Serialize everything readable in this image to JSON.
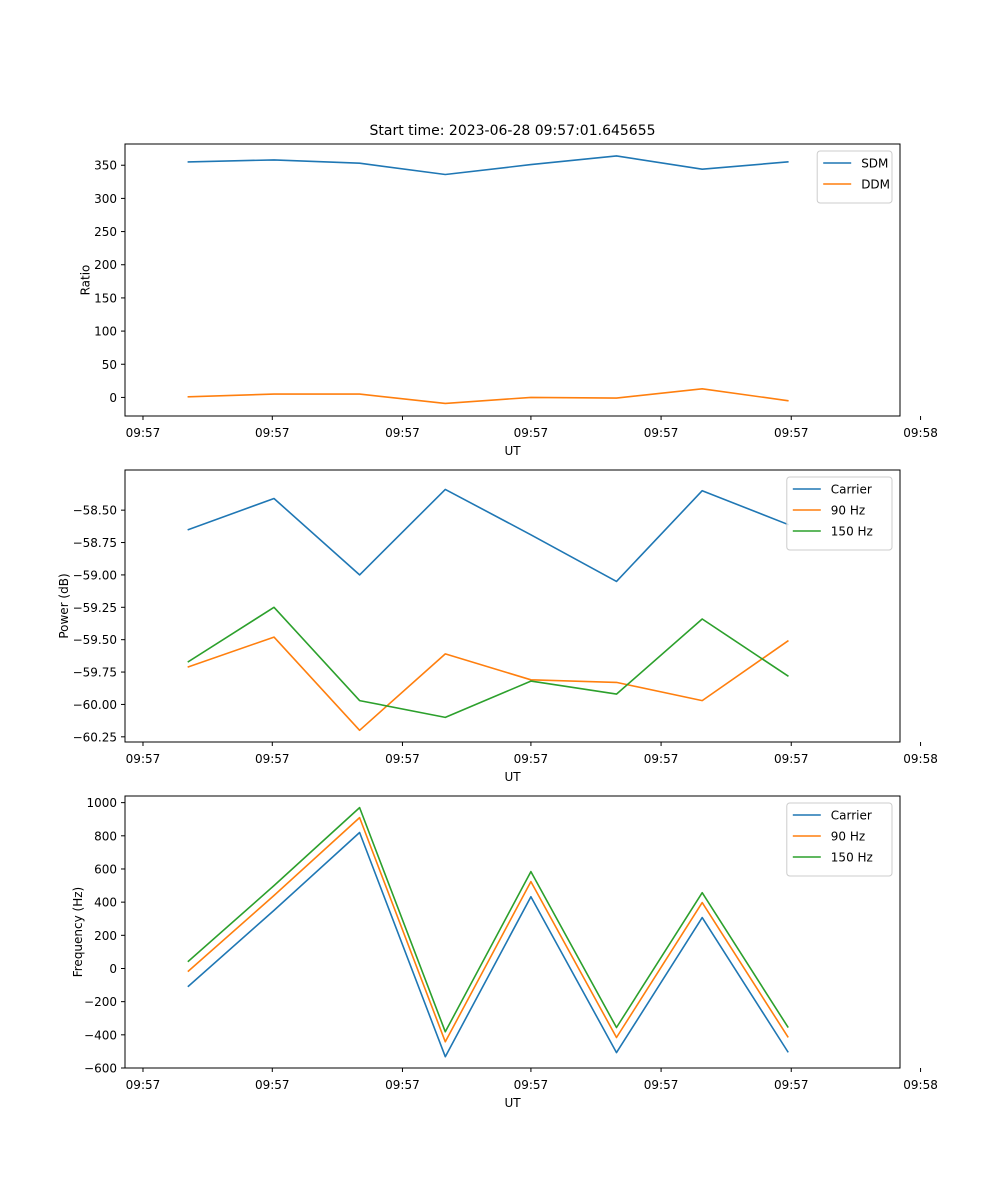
{
  "figure_title": "Start time: 2023-06-28 09:57:01.645655",
  "colors": {
    "blue": "#1f77b4",
    "orange": "#ff7f0e",
    "green": "#2ca02c"
  },
  "chart_data": [
    {
      "type": "line",
      "title": "Start time: 2023-06-28 09:57:01.645655",
      "xlabel": "UT",
      "ylabel": "Ratio",
      "x_index": [
        1,
        2,
        3,
        4,
        5,
        6,
        7,
        8
      ],
      "xlim": [
        0.26,
        9.31
      ],
      "ylim": [
        -28,
        382
      ],
      "x_ticks": [
        {
          "at": 0.47,
          "label": "09:57"
        },
        {
          "at": 1.98,
          "label": "09:57"
        },
        {
          "at": 3.5,
          "label": "09:57"
        },
        {
          "at": 5.0,
          "label": "09:57"
        },
        {
          "at": 6.52,
          "label": "09:57"
        },
        {
          "at": 8.04,
          "label": "09:57"
        },
        {
          "at": 9.55,
          "label": "09:58"
        }
      ],
      "y_ticks": [
        0,
        50,
        100,
        150,
        200,
        250,
        300,
        350
      ],
      "legend_position": "top-right",
      "series": [
        {
          "name": "SDM",
          "color": "#1f77b4",
          "values": [
            355,
            358,
            353,
            336,
            351,
            364,
            344,
            355
          ]
        },
        {
          "name": "DDM",
          "color": "#ff7f0e",
          "values": [
            1,
            5,
            5,
            -9,
            0,
            -1,
            13,
            -5
          ]
        }
      ]
    },
    {
      "type": "line",
      "title": "",
      "xlabel": "UT",
      "ylabel": "Power (dB)",
      "x_index": [
        1,
        2,
        3,
        4,
        5,
        6,
        7,
        8
      ],
      "xlim": [
        0.26,
        9.31
      ],
      "ylim": [
        -60.29,
        -58.19
      ],
      "x_ticks": [
        {
          "at": 0.47,
          "label": "09:57"
        },
        {
          "at": 1.98,
          "label": "09:57"
        },
        {
          "at": 3.5,
          "label": "09:57"
        },
        {
          "at": 5.0,
          "label": "09:57"
        },
        {
          "at": 6.52,
          "label": "09:57"
        },
        {
          "at": 8.04,
          "label": "09:57"
        },
        {
          "at": 9.55,
          "label": "09:58"
        }
      ],
      "y_ticks": [
        -60.25,
        -60.0,
        -59.75,
        -59.5,
        -59.25,
        -59.0,
        -58.75,
        -58.5
      ],
      "y_tick_labels": [
        "−60.25",
        "−60.00",
        "−59.75",
        "−59.50",
        "−59.25",
        "−59.00",
        "−58.75",
        "−58.50"
      ],
      "legend_position": "top-right",
      "series": [
        {
          "name": "Carrier",
          "color": "#1f77b4",
          "values": [
            -58.65,
            -58.41,
            -59.0,
            -58.34,
            -58.69,
            -59.05,
            -58.35,
            -58.61
          ]
        },
        {
          "name": "90 Hz",
          "color": "#ff7f0e",
          "values": [
            -59.71,
            -59.48,
            -60.2,
            -59.61,
            -59.81,
            -59.83,
            -59.97,
            -59.51
          ]
        },
        {
          "name": "150 Hz",
          "color": "#2ca02c",
          "values": [
            -59.67,
            -59.25,
            -59.97,
            -60.1,
            -59.82,
            -59.92,
            -59.34,
            -59.78
          ]
        }
      ]
    },
    {
      "type": "line",
      "title": "",
      "xlabel": "UT",
      "ylabel": "Frequency (Hz)",
      "x_index": [
        1,
        2,
        3,
        4,
        5,
        6,
        7,
        8
      ],
      "xlim": [
        0.26,
        9.31
      ],
      "ylim": [
        -600,
        1040
      ],
      "x_ticks": [
        {
          "at": 0.47,
          "label": "09:57"
        },
        {
          "at": 1.98,
          "label": "09:57"
        },
        {
          "at": 3.5,
          "label": "09:57"
        },
        {
          "at": 5.0,
          "label": "09:57"
        },
        {
          "at": 6.52,
          "label": "09:57"
        },
        {
          "at": 8.04,
          "label": "09:57"
        },
        {
          "at": 9.55,
          "label": "09:58"
        }
      ],
      "y_ticks": [
        -600,
        -400,
        -200,
        0,
        200,
        400,
        600,
        800,
        1000
      ],
      "y_tick_labels": [
        "−600",
        "−400",
        "−200",
        "0",
        "200",
        "400",
        "600",
        "800",
        "1000"
      ],
      "legend_position": "top-right",
      "series": [
        {
          "name": "Carrier",
          "color": "#1f77b4",
          "values": [
            -107,
            350,
            820,
            -532,
            433,
            -507,
            307,
            -502
          ]
        },
        {
          "name": "90 Hz",
          "color": "#ff7f0e",
          "values": [
            -16,
            440,
            910,
            -442,
            524,
            -416,
            397,
            -412
          ]
        },
        {
          "name": "150 Hz",
          "color": "#2ca02c",
          "values": [
            44,
            500,
            970,
            -382,
            584,
            -356,
            457,
            -352
          ]
        }
      ]
    }
  ]
}
